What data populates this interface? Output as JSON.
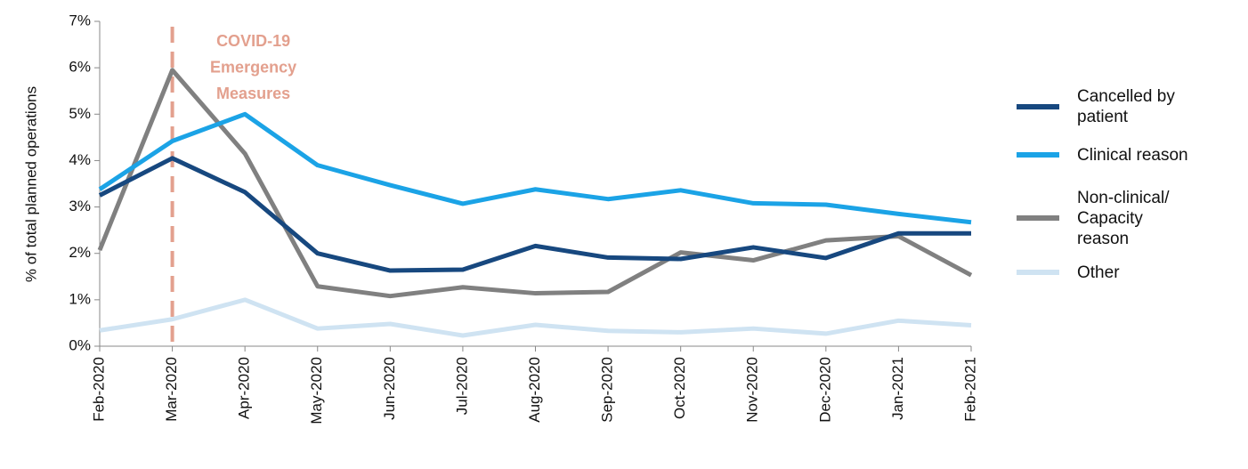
{
  "chart_data": {
    "type": "line",
    "y_label": "% of total planned operations",
    "categories": [
      "Feb-2020",
      "Mar-2020",
      "Apr-2020",
      "May-2020",
      "Jun-2020",
      "Jul-2020",
      "Aug-2020",
      "Sep-2020",
      "Oct-2020",
      "Nov-2020",
      "Dec-2020",
      "Jan-2021",
      "Feb-2021"
    ],
    "series": [
      {
        "name": "Cancelled by\npatient",
        "color": "#17487f",
        "values": [
          3.25,
          4.05,
          3.32,
          2.0,
          1.63,
          1.65,
          2.16,
          1.91,
          1.88,
          2.13,
          1.9,
          2.43,
          2.43
        ]
      },
      {
        "name": "Clinical reason",
        "color": "#1ba3e6",
        "values": [
          3.38,
          4.42,
          5.0,
          3.9,
          3.47,
          3.07,
          3.38,
          3.17,
          3.36,
          3.08,
          3.05,
          2.85,
          2.67
        ]
      },
      {
        "name": "Non-clinical/\nCapacity\nreason",
        "color": "#808080",
        "values": [
          2.07,
          5.95,
          4.15,
          1.29,
          1.08,
          1.27,
          1.14,
          1.17,
          2.02,
          1.85,
          2.28,
          2.37,
          1.53
        ]
      },
      {
        "name": "Other",
        "color": "#cfe3f2",
        "values": [
          0.34,
          0.58,
          1.0,
          0.38,
          0.48,
          0.23,
          0.46,
          0.33,
          0.3,
          0.38,
          0.27,
          0.55,
          0.45
        ]
      }
    ],
    "ylim": [
      0,
      7
    ],
    "yticks": [
      {
        "value": 0,
        "label": "0%"
      },
      {
        "value": 1,
        "label": "1%"
      },
      {
        "value": 2,
        "label": "2%"
      },
      {
        "value": 3,
        "label": "3%"
      },
      {
        "value": 4,
        "label": "4%"
      },
      {
        "value": 5,
        "label": "5%"
      },
      {
        "value": 6,
        "label": "6%"
      },
      {
        "value": 7,
        "label": "7%"
      }
    ],
    "annotation": {
      "lines": [
        "COVID-19",
        "Emergency",
        "Measures"
      ],
      "x": "Mar-2020",
      "color": "#e3a08e"
    },
    "legend": "right"
  }
}
